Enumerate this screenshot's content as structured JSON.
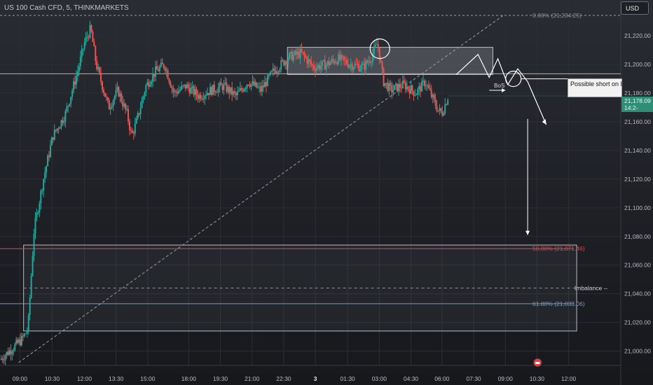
{
  "header": {
    "symbol_line": "US 100 Cash CFD, 5, THINKMARKETS",
    "currency": "USD"
  },
  "annotations": {
    "fib_0": "0.00% (21,234.25)",
    "fib_50": "50.00% (21,071.46)",
    "fib_618": "61.80% (21,033.06)",
    "imbalance": "Imbalance --",
    "bos": "BoS",
    "note": "Possible short on BoS if this plays"
  },
  "price_badge": {
    "line1": "21,178.09",
    "line2": "14:2-"
  },
  "colors": {
    "up": "#26a69a",
    "down": "#ef5350",
    "fib_50": "#e04848",
    "fib_618": "#7f98b8",
    "zone_stroke": "#b9bcc4",
    "grid": "#2c2e34"
  },
  "chart_data": {
    "type": "candlestick",
    "timeframe": "5",
    "ylim": [
      20990,
      21245
    ],
    "xlim": [
      0,
      100
    ],
    "y_ticks": [
      21000,
      21020,
      21040,
      21060,
      21080,
      21100,
      21120,
      21140,
      21160,
      21180,
      21200,
      21220
    ],
    "y_tick_labels": [
      "21,000.00",
      "21,020.00",
      "21,040.00",
      "21,060.00",
      "21,080.00",
      "21,100.00",
      "21,120.00",
      "21,140.00",
      "21,160.00",
      "21,180.00",
      "21,200.00",
      "21,220.00"
    ],
    "x_ticks": [
      {
        "x": 3.2,
        "label": "09:00"
      },
      {
        "x": 8.4,
        "label": "10:30"
      },
      {
        "x": 13.6,
        "label": "12:00"
      },
      {
        "x": 18.7,
        "label": "13:30"
      },
      {
        "x": 23.8,
        "label": "15:00"
      },
      {
        "x": 30.4,
        "label": "18:00"
      },
      {
        "x": 35.5,
        "label": "19:30"
      },
      {
        "x": 40.6,
        "label": "21:00"
      },
      {
        "x": 45.7,
        "label": "22:30"
      },
      {
        "x": 50.8,
        "label": "3"
      },
      {
        "x": 56.0,
        "label": "01:30"
      },
      {
        "x": 61.1,
        "label": "03:00"
      },
      {
        "x": 66.2,
        "label": "04:30"
      },
      {
        "x": 71.2,
        "label": "06:00"
      },
      {
        "x": 76.3,
        "label": "07:30"
      },
      {
        "x": 81.4,
        "label": "09:00"
      },
      {
        "x": 86.5,
        "label": "10:30"
      },
      {
        "x": 91.6,
        "label": "12:00"
      }
    ],
    "ohlc_keypoints": [
      [
        0.0,
        20994
      ],
      [
        3.5,
        21008
      ],
      [
        4.5,
        21015
      ],
      [
        5.5,
        21085
      ],
      [
        7.0,
        21120
      ],
      [
        8.5,
        21150
      ],
      [
        10.5,
        21165
      ],
      [
        12.5,
        21195
      ],
      [
        13.6,
        21215
      ],
      [
        14.6,
        21225
      ],
      [
        15.5,
        21200
      ],
      [
        16.5,
        21185
      ],
      [
        17.5,
        21170
      ],
      [
        19.0,
        21182
      ],
      [
        20.5,
        21165
      ],
      [
        21.2,
        21150
      ],
      [
        22.0,
        21160
      ],
      [
        23.5,
        21185
      ],
      [
        25.0,
        21195
      ],
      [
        26.5,
        21200
      ],
      [
        28.0,
        21180
      ],
      [
        30.0,
        21185
      ],
      [
        32.0,
        21178
      ],
      [
        34.0,
        21182
      ],
      [
        36.0,
        21185
      ],
      [
        38.0,
        21178
      ],
      [
        40.0,
        21188
      ],
      [
        42.0,
        21182
      ],
      [
        44.0,
        21195
      ],
      [
        46.5,
        21205
      ],
      [
        48.5,
        21208
      ],
      [
        50.5,
        21198
      ],
      [
        52.5,
        21200
      ],
      [
        54.5,
        21204
      ],
      [
        56.5,
        21200
      ],
      [
        58.5,
        21198
      ],
      [
        59.8,
        21205
      ],
      [
        60.8,
        21215
      ],
      [
        61.8,
        21188
      ],
      [
        63.0,
        21182
      ],
      [
        65.0,
        21186
      ],
      [
        67.0,
        21180
      ],
      [
        68.5,
        21188
      ],
      [
        69.5,
        21178
      ],
      [
        70.6,
        21168
      ],
      [
        71.2,
        21166
      ],
      [
        72.2,
        21178
      ]
    ],
    "supply_zone": {
      "x0": 46.3,
      "x1": 79.4,
      "y0": 21193,
      "y1": 21212
    },
    "demand_zone": {
      "x0": 3.8,
      "x1": 92.9,
      "y0": 21014,
      "y1": 21074
    },
    "resistance_line": 21193.5,
    "fib_levels": [
      {
        "level": 0.0,
        "price": 21234.25
      },
      {
        "level": 0.5,
        "price": 21071.46
      },
      {
        "level": 0.618,
        "price": 21033.06
      }
    ],
    "imbalance_line": 21044,
    "diagonal": {
      "from": [
        3.0,
        20992
      ],
      "to": [
        81.0,
        21234
      ]
    },
    "projection": [
      [
        73.5,
        21193
      ],
      [
        77.0,
        21207
      ],
      [
        78.8,
        21191
      ],
      [
        80.2,
        21204
      ],
      [
        81.8,
        21186
      ],
      [
        83.4,
        21197
      ],
      [
        85.0,
        21188
      ],
      [
        88.0,
        21158
      ]
    ],
    "bos_arrow": {
      "from": [
        78.8,
        21182
      ],
      "to": [
        81.4,
        21182
      ]
    },
    "target_arrow": {
      "x": 85.0,
      "from": 21162,
      "to": 21081
    },
    "circle_high": {
      "x": 61.2,
      "y": 21211
    },
    "circle_projection": {
      "x": 82.7,
      "y": 21190
    },
    "current_price": 21178.09
  }
}
